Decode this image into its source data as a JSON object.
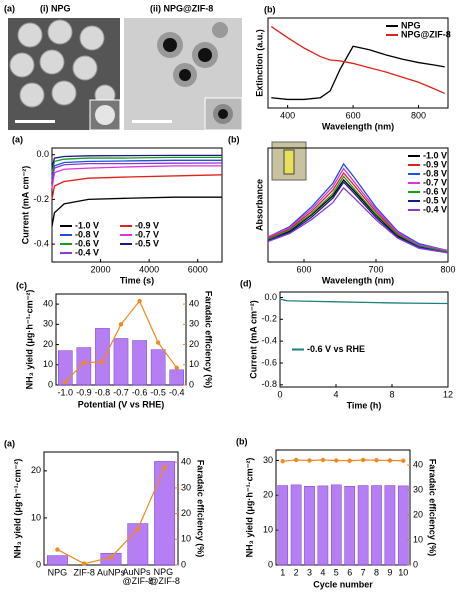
{
  "images": {
    "panel": "(a)",
    "labels": [
      "(i) NPG",
      "(ii) NPG@ZIF-8"
    ]
  },
  "chart_data": [
    {
      "type": "line",
      "panel": "(b)",
      "xlabel": "Wavelength (nm)",
      "ylabel": "Extinction (a.u.)",
      "legend": "upper right",
      "x": [
        350,
        400,
        450,
        500,
        530,
        560,
        600,
        650,
        700,
        750,
        800,
        850,
        880
      ],
      "xlim": [
        340,
        890
      ],
      "xticks": [
        400,
        600,
        800
      ],
      "ylim": [
        0,
        1.05
      ],
      "series": [
        {
          "name": "NPG",
          "color": "#000000",
          "values": [
            0.12,
            0.1,
            0.1,
            0.12,
            0.2,
            0.45,
            0.72,
            0.68,
            0.62,
            0.57,
            0.53,
            0.5,
            0.48
          ]
        },
        {
          "name": "NPG@ZIF-8",
          "color": "#e0201b",
          "values": [
            0.95,
            0.82,
            0.7,
            0.6,
            0.56,
            0.55,
            0.52,
            0.47,
            0.42,
            0.36,
            0.3,
            0.22,
            0.17
          ]
        }
      ]
    },
    {
      "type": "line",
      "panel": "(a)",
      "xlabel": "Time (s)",
      "ylabel": "Current (mA cm⁻²)",
      "legend": "lower left",
      "x": [
        0,
        100,
        500,
        1500,
        3000,
        5000,
        7000
      ],
      "xlim": [
        0,
        7000
      ],
      "xticks": [
        2000,
        4000,
        6000
      ],
      "ylim": [
        -0.48,
        0.03
      ],
      "yticks": [
        -0.4,
        -0.2,
        {
          "value": 0,
          "label": "0.0"
        }
      ],
      "series": [
        {
          "name": "-1.0 V",
          "color": "#000000",
          "values": [
            -0.32,
            -0.26,
            -0.22,
            -0.2,
            -0.195,
            -0.19,
            -0.19
          ]
        },
        {
          "name": "-0.9 V",
          "color": "#e0201b",
          "values": [
            -0.2,
            -0.14,
            -0.12,
            -0.105,
            -0.1,
            -0.095,
            -0.09
          ]
        },
        {
          "name": "-0.8 V",
          "color": "#1f4fe0",
          "values": [
            -0.1,
            -0.05,
            -0.035,
            -0.03,
            -0.028,
            -0.025,
            -0.025
          ]
        },
        {
          "name": "-0.7 V",
          "color": "#e030e0",
          "values": [
            -0.15,
            -0.08,
            -0.065,
            -0.06,
            -0.055,
            -0.05,
            -0.05
          ]
        },
        {
          "name": "-0.6 V",
          "color": "#1a9a1a",
          "values": [
            -0.08,
            -0.03,
            -0.02,
            -0.015,
            -0.015,
            -0.012,
            -0.012
          ]
        },
        {
          "name": "-0.5 V",
          "color": "#1a1a8a",
          "values": [
            -0.06,
            -0.015,
            -0.008,
            -0.005,
            -0.004,
            -0.003,
            -0.003
          ]
        },
        {
          "name": "-0.4 V",
          "color": "#8a3ad0",
          "values": [
            -0.12,
            -0.06,
            -0.045,
            -0.04,
            -0.04,
            -0.038,
            -0.037
          ]
        }
      ]
    },
    {
      "type": "line",
      "panel": "(b)",
      "xlabel": "Wavelength (nm)",
      "ylabel": "Absorbance",
      "legend": "upper right",
      "x": [
        550,
        580,
        610,
        640,
        655,
        670,
        700,
        730,
        760,
        800
      ],
      "xlim": [
        550,
        800
      ],
      "xticks": [
        600,
        700,
        800
      ],
      "ylim": [
        0,
        1
      ],
      "series": [
        {
          "name": "-1.0 V",
          "color": "#000000",
          "values": [
            0.2,
            0.27,
            0.41,
            0.58,
            0.72,
            0.62,
            0.41,
            0.23,
            0.14,
            0.09
          ]
        },
        {
          "name": "-0.9 V",
          "color": "#e0201b",
          "values": [
            0.21,
            0.29,
            0.44,
            0.63,
            0.78,
            0.67,
            0.44,
            0.25,
            0.15,
            0.1
          ]
        },
        {
          "name": "-0.8 V",
          "color": "#1f4fe0",
          "values": [
            0.22,
            0.31,
            0.48,
            0.69,
            0.86,
            0.74,
            0.48,
            0.27,
            0.16,
            0.1
          ]
        },
        {
          "name": "-0.7 V",
          "color": "#e030e0",
          "values": [
            0.22,
            0.3,
            0.46,
            0.66,
            0.82,
            0.7,
            0.46,
            0.26,
            0.15,
            0.1
          ]
        },
        {
          "name": "-0.6 V",
          "color": "#1a9a1a",
          "values": [
            0.2,
            0.28,
            0.42,
            0.6,
            0.75,
            0.64,
            0.42,
            0.24,
            0.14,
            0.09
          ]
        },
        {
          "name": "-0.5 V",
          "color": "#1a1a8a",
          "values": [
            0.19,
            0.26,
            0.39,
            0.56,
            0.7,
            0.6,
            0.39,
            0.22,
            0.13,
            0.08
          ]
        },
        {
          "name": "-0.4 V",
          "color": "#8a3ad0",
          "values": [
            0.18,
            0.25,
            0.37,
            0.52,
            0.65,
            0.56,
            0.37,
            0.21,
            0.12,
            0.08
          ]
        }
      ]
    },
    {
      "type": "bar",
      "panel": "(c)",
      "xlabel": "Potential (V vs RHE)",
      "ylabel": "NH₃ yield (μg·h⁻¹·cm⁻²)",
      "y2label": "Faradaic efficiency (%)",
      "categories": [
        "-1.0",
        "-0.9",
        "-0.8",
        "-0.7",
        "-0.6",
        "-0.5",
        "-0.4"
      ],
      "ylim": [
        0,
        45
      ],
      "yticks": [
        0,
        10,
        20,
        30,
        40
      ],
      "y2lim": [
        0,
        45
      ],
      "y2ticks": [
        0,
        10,
        20,
        30,
        40
      ],
      "series": [
        {
          "type": "bar",
          "color": "#a35ff0",
          "values": [
            17,
            18.5,
            28,
            23,
            22,
            17.5,
            7.5
          ]
        },
        {
          "type": "line",
          "axis": "y2",
          "color": "#f08a1e",
          "values": [
            1.5,
            11,
            11.5,
            30,
            41.5,
            21,
            8.5
          ]
        }
      ]
    },
    {
      "type": "line",
      "panel": "(d)",
      "xlabel": "Time (h)",
      "ylabel": "Current (mA cm⁻²)",
      "legend": "center left",
      "x": [
        0,
        0.5,
        2,
        4,
        6,
        8,
        10,
        12
      ],
      "xlim": [
        0,
        12
      ],
      "xticks": [
        0,
        4,
        8,
        12
      ],
      "ylim": [
        -0.82,
        0.05
      ],
      "yticks": [
        {
          "value": 0,
          "label": "0.0"
        },
        -0.2,
        -0.4,
        -0.6,
        -0.8
      ],
      "series": [
        {
          "name": "-0.6 V vs RHE",
          "color": "#1f7f7a",
          "values": [
            -0.015,
            -0.03,
            -0.035,
            -0.04,
            -0.045,
            -0.05,
            -0.053,
            -0.055
          ]
        }
      ]
    },
    {
      "type": "bar",
      "panel": "(a)",
      "ylabel": "NH₃ yield (μg·h⁻¹·cm⁻²)",
      "y2label": "Faradaic efficiency (%)",
      "categories": [
        "NPG",
        "ZIF-8",
        "AuNPs",
        "AuNPs @ZIF-8",
        "NPG @ZIF-8"
      ],
      "ylim": [
        0,
        24
      ],
      "yticks": [
        0,
        10,
        20
      ],
      "y2lim": [
        0,
        44
      ],
      "y2ticks": [
        0,
        10,
        20,
        30,
        40
      ],
      "series": [
        {
          "type": "bar",
          "color": "#a35ff0",
          "values": [
            2,
            0,
            2.5,
            8.8,
            22
          ]
        },
        {
          "type": "line",
          "axis": "y2",
          "color": "#f08a1e",
          "values": [
            6,
            0.5,
            3,
            14,
            38
          ]
        }
      ]
    },
    {
      "type": "bar",
      "panel": "(b)",
      "xlabel": "Cycle number",
      "ylabel": "NH₃ yield (μg·h⁻¹·cm⁻²)",
      "y2label": "Faradaic efficiency (%)",
      "categories": [
        "1",
        "2",
        "3",
        "4",
        "5",
        "6",
        "7",
        "8",
        "9",
        "10"
      ],
      "ylim": [
        0,
        33
      ],
      "yticks": [
        0,
        10,
        20,
        30
      ],
      "y2lim": [
        0,
        46
      ],
      "y2ticks": [
        0,
        10,
        20,
        30,
        40
      ],
      "series": [
        {
          "type": "bar",
          "color": "#a35ff0",
          "values": [
            22.8,
            23,
            22.6,
            22.7,
            23,
            22.6,
            22.8,
            22.8,
            22.8,
            22.7
          ]
        },
        {
          "type": "line",
          "axis": "y2",
          "color": "#f08a1e",
          "values": [
            41.5,
            42,
            41.8,
            42,
            41.8,
            41.7,
            42,
            41.9,
            41.8,
            41.7
          ]
        }
      ]
    }
  ]
}
